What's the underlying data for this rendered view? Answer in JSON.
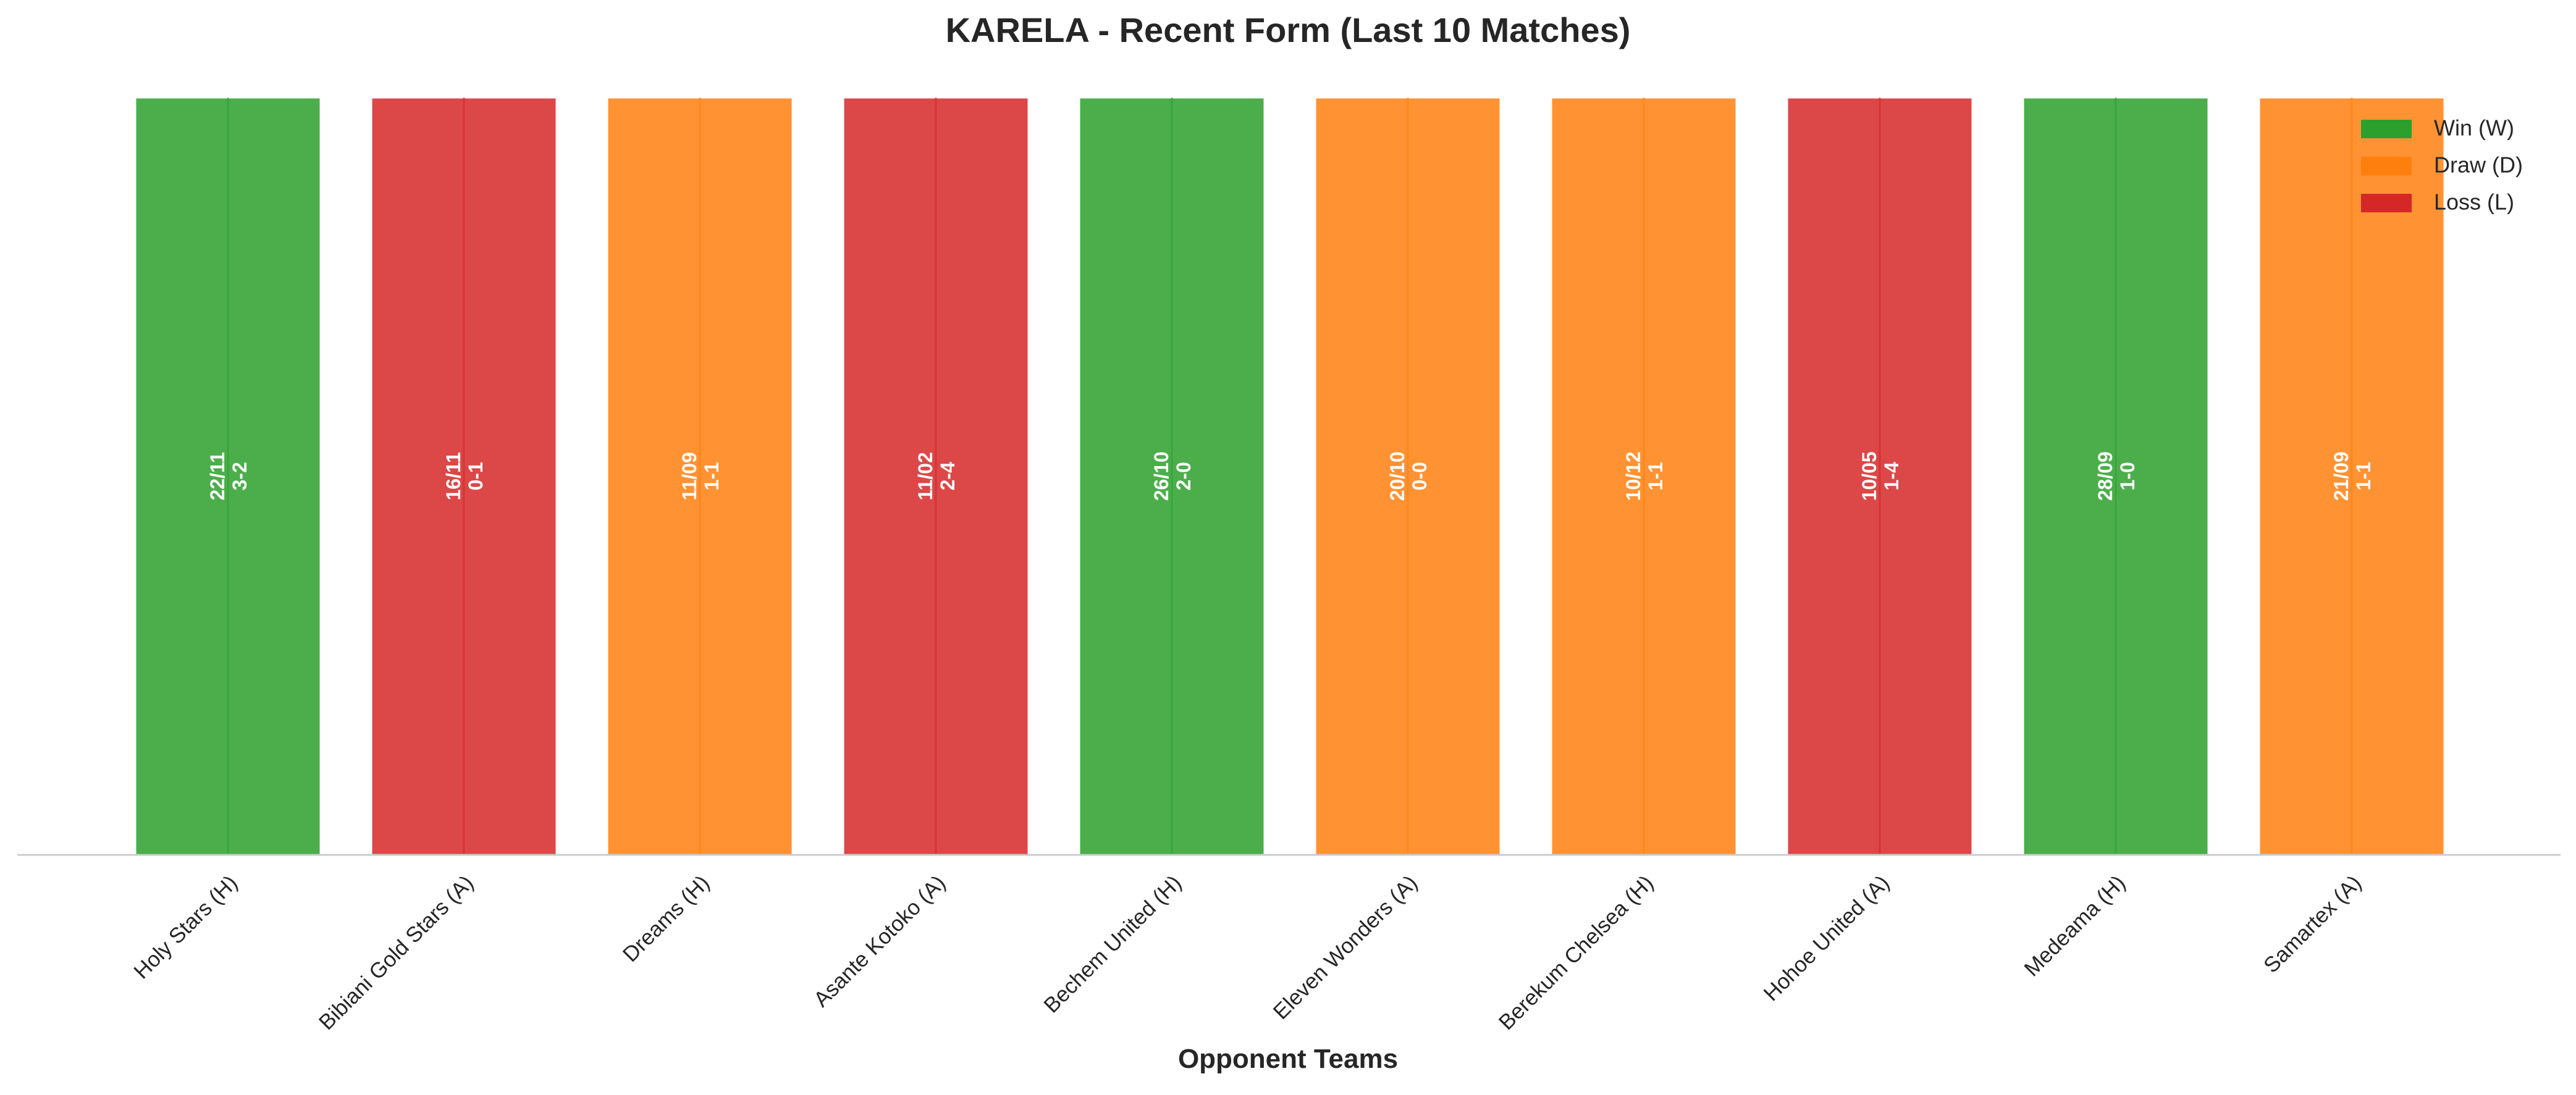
{
  "chart_data": {
    "type": "bar",
    "title": "KARELA - Recent Form (Last 10 Matches)",
    "xlabel": "Opponent Teams",
    "ylabel": "",
    "categories": [
      "Holy Stars (H)",
      "Bibiani Gold Stars (A)",
      "Dreams (H)",
      "Asante Kotoko (A)",
      "Bechem United (H)",
      "Eleven Wonders (A)",
      "Berekum Chelsea (H)",
      "Hohoe United (A)",
      "Medeama (H)",
      "Samartex (A)"
    ],
    "values": [
      1,
      1,
      1,
      1,
      1,
      1,
      1,
      1,
      1,
      1
    ],
    "results": [
      "W",
      "L",
      "D",
      "L",
      "W",
      "D",
      "D",
      "L",
      "W",
      "D"
    ],
    "dates": [
      "22/11",
      "16/11",
      "11/09",
      "11/02",
      "26/10",
      "20/10",
      "10/12",
      "10/05",
      "28/09",
      "21/09"
    ],
    "scores": [
      "3-2",
      "0-1",
      "1-1",
      "2-4",
      "2-0",
      "0-0",
      "1-1",
      "1-4",
      "1-0",
      "1-1"
    ],
    "legend": [
      {
        "key": "W",
        "label": "Win (W)",
        "color": "#2ca02c"
      },
      {
        "key": "D",
        "label": "Draw (D)",
        "color": "#ff7f0e"
      },
      {
        "key": "L",
        "label": "Loss (L)",
        "color": "#d62728"
      }
    ],
    "legend_position": "top-right",
    "grid": false
  }
}
